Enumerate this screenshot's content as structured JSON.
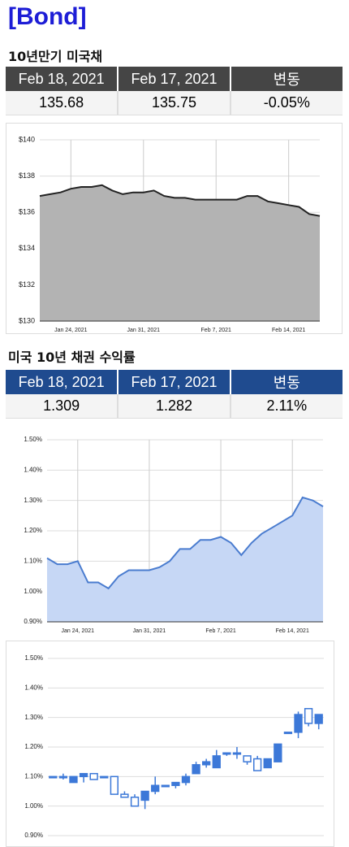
{
  "title": "[Bond]",
  "tables": [
    {
      "caption": "10년만기 미국채",
      "header_color": "#454545",
      "columns": [
        "Feb 18, 2021",
        "Feb 17, 2021",
        "변동"
      ],
      "row": [
        "135.68",
        "135.75",
        "-0.05%"
      ]
    },
    {
      "caption": "미국 10년 채권 수익률",
      "header_color": "#1f4b8f",
      "columns": [
        "Feb 18, 2021",
        "Feb 17, 2021",
        "변동"
      ],
      "row": [
        "1.309",
        "1.282",
        "2.11%"
      ]
    }
  ],
  "chart_data": [
    {
      "type": "area",
      "color": "#b3b3b3",
      "line_color": "#222222",
      "grid": true,
      "x": [
        "2021-01-21",
        "2021-01-22",
        "2021-01-23",
        "2021-01-24",
        "2021-01-25",
        "2021-01-26",
        "2021-01-27",
        "2021-01-28",
        "2021-01-29",
        "2021-01-30",
        "2021-01-31",
        "2021-02-01",
        "2021-02-02",
        "2021-02-03",
        "2021-02-04",
        "2021-02-05",
        "2021-02-06",
        "2021-02-07",
        "2021-02-08",
        "2021-02-09",
        "2021-02-10",
        "2021-02-11",
        "2021-02-12",
        "2021-02-13",
        "2021-02-14",
        "2021-02-15",
        "2021-02-16",
        "2021-02-17"
      ],
      "values": [
        136.9,
        137.0,
        137.1,
        137.3,
        137.4,
        137.4,
        137.5,
        137.2,
        137.0,
        137.1,
        137.1,
        137.2,
        136.9,
        136.8,
        136.8,
        136.7,
        136.7,
        136.7,
        136.7,
        136.7,
        136.9,
        136.9,
        136.6,
        136.5,
        136.4,
        136.3,
        135.9,
        135.8
      ],
      "xlim": [
        "2021-01-21",
        "2021-02-17"
      ],
      "xticks": [
        {
          "value": "2021-01-24",
          "label": "Jan 24, 2021"
        },
        {
          "value": "2021-01-31",
          "label": "Jan 31, 2021"
        },
        {
          "value": "2021-02-07",
          "label": "Feb 7, 2021"
        },
        {
          "value": "2021-02-14",
          "label": "Feb 14, 2021"
        }
      ],
      "ylim": [
        130,
        140
      ],
      "yticks": [
        {
          "value": 130,
          "label": "$130"
        },
        {
          "value": 132,
          "label": "$132"
        },
        {
          "value": 134,
          "label": "$134"
        },
        {
          "value": 136,
          "label": "$136"
        },
        {
          "value": 138,
          "label": "$138"
        },
        {
          "value": 140,
          "label": "$140"
        }
      ]
    },
    {
      "type": "area",
      "color": "#c6d7f5",
      "line_color": "#4a7ccf",
      "grid": true,
      "x": [
        "2021-01-21",
        "2021-01-22",
        "2021-01-23",
        "2021-01-24",
        "2021-01-25",
        "2021-01-26",
        "2021-01-27",
        "2021-01-28",
        "2021-01-29",
        "2021-01-30",
        "2021-01-31",
        "2021-02-01",
        "2021-02-02",
        "2021-02-03",
        "2021-02-04",
        "2021-02-05",
        "2021-02-06",
        "2021-02-07",
        "2021-02-08",
        "2021-02-09",
        "2021-02-10",
        "2021-02-11",
        "2021-02-12",
        "2021-02-13",
        "2021-02-14",
        "2021-02-15",
        "2021-02-16",
        "2021-02-17"
      ],
      "values": [
        1.11,
        1.09,
        1.09,
        1.1,
        1.03,
        1.03,
        1.01,
        1.05,
        1.07,
        1.07,
        1.07,
        1.08,
        1.1,
        1.14,
        1.14,
        1.17,
        1.17,
        1.18,
        1.16,
        1.12,
        1.16,
        1.19,
        1.21,
        1.23,
        1.25,
        1.31,
        1.3,
        1.28
      ],
      "xlim": [
        "2021-01-21",
        "2021-02-17"
      ],
      "xticks": [
        {
          "value": "2021-01-24",
          "label": "Jan 24, 2021"
        },
        {
          "value": "2021-01-31",
          "label": "Jan 31, 2021"
        },
        {
          "value": "2021-02-07",
          "label": "Feb 7, 2021"
        },
        {
          "value": "2021-02-14",
          "label": "Feb 14, 2021"
        }
      ],
      "ylim": [
        0.9,
        1.5
      ],
      "yticks": [
        {
          "value": 0.9,
          "label": "0.90%"
        },
        {
          "value": 1.0,
          "label": "1.00%"
        },
        {
          "value": 1.1,
          "label": "1.10%"
        },
        {
          "value": 1.2,
          "label": "1.20%"
        },
        {
          "value": 1.3,
          "label": "1.30%"
        },
        {
          "value": 1.4,
          "label": "1.40%"
        },
        {
          "value": 1.5,
          "label": "1.50%"
        }
      ]
    },
    {
      "type": "candlestick",
      "color": "#3c78d8",
      "grid": true,
      "open": [
        1.1,
        1.1,
        1.08,
        1.1,
        1.11,
        1.1,
        1.1,
        1.04,
        1.03,
        1.02,
        1.05,
        1.07,
        1.07,
        1.08,
        1.11,
        1.14,
        1.13,
        1.18,
        1.18,
        1.17,
        1.16,
        1.13,
        1.15,
        1.25,
        1.25,
        1.33,
        1.28
      ],
      "high": [
        1.1,
        1.11,
        1.1,
        1.11,
        1.11,
        1.1,
        1.1,
        1.05,
        1.04,
        1.05,
        1.1,
        1.07,
        1.08,
        1.11,
        1.15,
        1.16,
        1.19,
        1.18,
        1.2,
        1.17,
        1.17,
        1.16,
        1.21,
        1.25,
        1.32,
        1.33,
        1.31
      ],
      "low": [
        1.1,
        1.09,
        1.08,
        1.08,
        1.09,
        1.1,
        1.04,
        1.03,
        1.0,
        0.99,
        1.04,
        1.07,
        1.06,
        1.07,
        1.11,
        1.13,
        1.13,
        1.17,
        1.16,
        1.14,
        1.12,
        1.13,
        1.15,
        1.25,
        1.23,
        1.27,
        1.26
      ],
      "close": [
        1.1,
        1.1,
        1.1,
        1.11,
        1.09,
        1.1,
        1.04,
        1.03,
        1.0,
        1.05,
        1.07,
        1.07,
        1.08,
        1.1,
        1.14,
        1.15,
        1.17,
        1.18,
        1.18,
        1.15,
        1.12,
        1.16,
        1.21,
        1.25,
        1.31,
        1.28,
        1.31
      ],
      "ylim": [
        0.9,
        1.5
      ],
      "yticks": [
        {
          "value": 0.9,
          "label": "0.90%"
        },
        {
          "value": 1.0,
          "label": "1.00%"
        },
        {
          "value": 1.1,
          "label": "1.10%"
        },
        {
          "value": 1.2,
          "label": "1.20%"
        },
        {
          "value": 1.3,
          "label": "1.30%"
        },
        {
          "value": 1.4,
          "label": "1.40%"
        },
        {
          "value": 1.5,
          "label": "1.50%"
        }
      ]
    }
  ]
}
